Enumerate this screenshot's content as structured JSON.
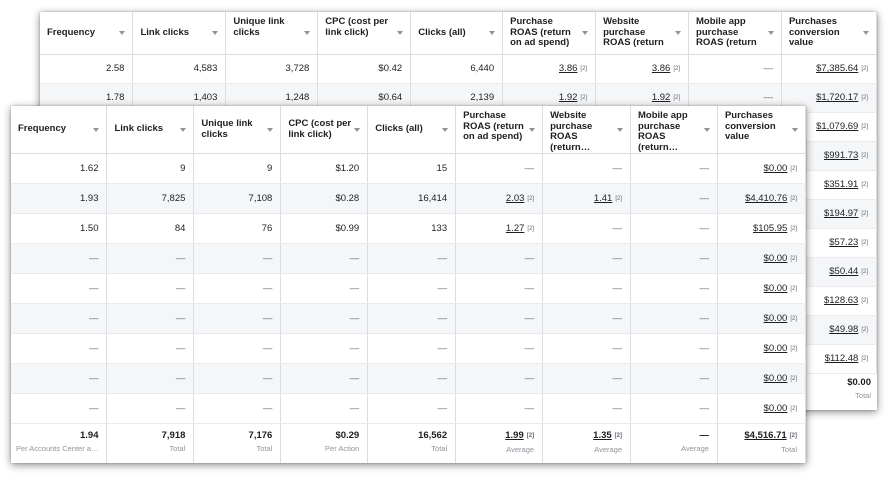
{
  "back_table": {
    "columns": [
      "Frequency",
      "Link clicks",
      "Unique link clicks",
      "CPC (cost per link click)",
      "Clicks (all)",
      "Purchase ROAS (return on ad spend)",
      "Website purchase ROAS (return on ad…",
      "Mobile app purchase ROAS (return on a…",
      "Purchases conversion value"
    ],
    "rows": [
      [
        "2.58",
        "4,583",
        "3,728",
        "$0.42",
        "6,440",
        "3.86",
        "3.86",
        "—",
        "$7,385.64"
      ],
      [
        "1.78",
        "1,403",
        "1,248",
        "$0.64",
        "2,139",
        "1.92",
        "1.92",
        "—",
        "$1,720.17"
      ],
      [
        "",
        "",
        "",
        "",
        "",
        "",
        "",
        "",
        "$1,079.69"
      ],
      [
        "",
        "",
        "",
        "",
        "",
        "",
        "",
        "",
        "$991.73"
      ],
      [
        "",
        "",
        "",
        "",
        "",
        "",
        "",
        "",
        "$351.91"
      ],
      [
        "",
        "",
        "",
        "",
        "",
        "",
        "",
        "",
        "$194.97"
      ],
      [
        "",
        "",
        "",
        "",
        "",
        "",
        "",
        "",
        "$57.23"
      ],
      [
        "",
        "",
        "",
        "",
        "",
        "",
        "",
        "",
        "$50.44"
      ],
      [
        "",
        "",
        "",
        "",
        "",
        "",
        "",
        "",
        "$128.63"
      ],
      [
        "",
        "",
        "",
        "",
        "",
        "",
        "",
        "",
        "$49.98"
      ],
      [
        "",
        "",
        "",
        "",
        "",
        "",
        "",
        "",
        "$112.48"
      ]
    ],
    "total": {
      "value": "$0.00",
      "label": "Total"
    }
  },
  "front_table": {
    "columns": [
      "Frequency",
      "Link clicks",
      "Unique link clicks",
      "CPC (cost per link click)",
      "Clicks (all)",
      "Purchase ROAS (return on ad spend)",
      "Website purchase ROAS (return…",
      "Mobile app purchase ROAS (return…",
      "Purchases conversion value"
    ],
    "rows": [
      [
        "1.62",
        "9",
        "9",
        "$1.20",
        "15",
        "—",
        "—",
        "—",
        "$0.00"
      ],
      [
        "1.93",
        "7,825",
        "7,108",
        "$0.28",
        "16,414",
        "2.03",
        "1.41",
        "—",
        "$4,410.76"
      ],
      [
        "1.50",
        "84",
        "76",
        "$0.99",
        "133",
        "1.27",
        "—",
        "—",
        "$105.95"
      ],
      [
        "—",
        "—",
        "—",
        "—",
        "—",
        "—",
        "—",
        "—",
        "$0.00"
      ],
      [
        "—",
        "—",
        "—",
        "—",
        "—",
        "—",
        "—",
        "—",
        "$0.00"
      ],
      [
        "—",
        "—",
        "—",
        "—",
        "—",
        "—",
        "—",
        "—",
        "$0.00"
      ],
      [
        "—",
        "—",
        "—",
        "—",
        "—",
        "—",
        "—",
        "—",
        "$0.00"
      ],
      [
        "—",
        "—",
        "—",
        "—",
        "—",
        "—",
        "—",
        "—",
        "$0.00"
      ],
      [
        "—",
        "—",
        "—",
        "—",
        "—",
        "—",
        "—",
        "—",
        "$0.00"
      ]
    ],
    "totals": [
      {
        "value": "1.94",
        "label": "Per Accounts Center a…"
      },
      {
        "value": "7,918",
        "label": "Total"
      },
      {
        "value": "7,176",
        "label": "Total"
      },
      {
        "value": "$0.29",
        "label": "Per Action"
      },
      {
        "value": "16,562",
        "label": "Total"
      },
      {
        "value": "1.99",
        "label": "Average"
      },
      {
        "value": "1.35",
        "label": "Average"
      },
      {
        "value": "—",
        "label": "Average"
      },
      {
        "value": "$4,516.71",
        "label": "Total"
      }
    ]
  },
  "info_icon": "[2]",
  "colors": {
    "border": "#dadde1",
    "row_alt": "#f5f6f7",
    "muted_text": "#90949c"
  }
}
